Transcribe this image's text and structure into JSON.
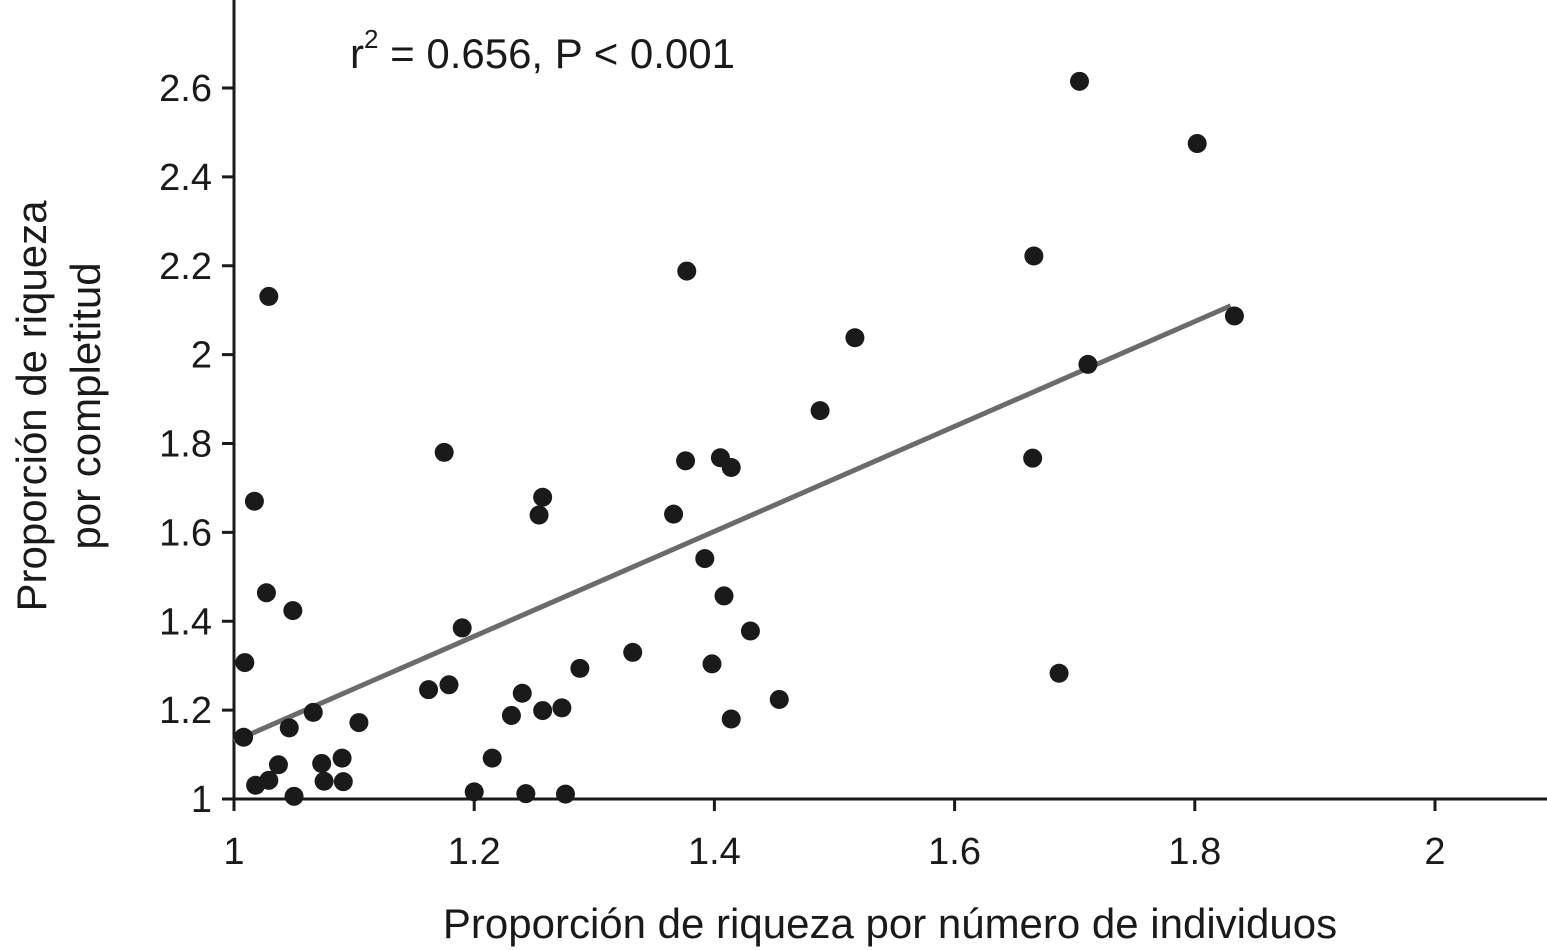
{
  "chart_data": {
    "type": "scatter",
    "title": "",
    "xlabel": "Proporción de riqueza por número de individuos",
    "ylabel_lines": [
      "Proporción de riqueza",
      "por completitud"
    ],
    "xlim": [
      1,
      2.0
    ],
    "ylim": [
      1,
      2.6
    ],
    "x_ticks": [
      {
        "value": 1,
        "label": "1"
      },
      {
        "value": 1.2,
        "label": "1.2"
      },
      {
        "value": 1.4,
        "label": "1.4"
      },
      {
        "value": 1.6,
        "label": "1.6"
      },
      {
        "value": 1.8,
        "label": "1.8"
      },
      {
        "value": 2.0,
        "label": "2"
      }
    ],
    "y_ticks": [
      {
        "value": 1,
        "label": "1"
      },
      {
        "value": 1.2,
        "label": "1.2"
      },
      {
        "value": 1.4,
        "label": "1.4"
      },
      {
        "value": 1.6,
        "label": "1.6"
      },
      {
        "value": 1.8,
        "label": "1.8"
      },
      {
        "value": 2.0,
        "label": "2"
      },
      {
        "value": 2.2,
        "label": "2.2"
      },
      {
        "value": 2.4,
        "label": "2.4"
      },
      {
        "value": 2.6,
        "label": "2.6"
      }
    ],
    "annotation": {
      "r_symbol": "r",
      "superscript": "2",
      "text": " = 0.656, P < 0.001"
    },
    "grid": false,
    "point_color": "#1a1a1a",
    "trend_color": "#6b6b6b",
    "trendline": {
      "x": [
        1.0,
        1.83
      ],
      "y": [
        1.13,
        2.11
      ]
    },
    "points": [
      {
        "x": 1.704,
        "y": 2.615
      },
      {
        "x": 1.802,
        "y": 2.475
      },
      {
        "x": 1.666,
        "y": 2.222
      },
      {
        "x": 1.377,
        "y": 2.188
      },
      {
        "x": 1.029,
        "y": 2.131
      },
      {
        "x": 1.833,
        "y": 2.087
      },
      {
        "x": 1.517,
        "y": 2.038
      },
      {
        "x": 1.711,
        "y": 1.978
      },
      {
        "x": 1.488,
        "y": 1.874
      },
      {
        "x": 1.175,
        "y": 1.78
      },
      {
        "x": 1.376,
        "y": 1.761
      },
      {
        "x": 1.405,
        "y": 1.768
      },
      {
        "x": 1.414,
        "y": 1.746
      },
      {
        "x": 1.665,
        "y": 1.767
      },
      {
        "x": 1.017,
        "y": 1.67
      },
      {
        "x": 1.257,
        "y": 1.679
      },
      {
        "x": 1.254,
        "y": 1.639
      },
      {
        "x": 1.366,
        "y": 1.641
      },
      {
        "x": 1.392,
        "y": 1.541
      },
      {
        "x": 1.027,
        "y": 1.464
      },
      {
        "x": 1.049,
        "y": 1.424
      },
      {
        "x": 1.408,
        "y": 1.457
      },
      {
        "x": 1.19,
        "y": 1.385
      },
      {
        "x": 1.43,
        "y": 1.378
      },
      {
        "x": 1.332,
        "y": 1.33
      },
      {
        "x": 1.009,
        "y": 1.307
      },
      {
        "x": 1.398,
        "y": 1.304
      },
      {
        "x": 1.288,
        "y": 1.294
      },
      {
        "x": 1.687,
        "y": 1.283
      },
      {
        "x": 1.162,
        "y": 1.246
      },
      {
        "x": 1.179,
        "y": 1.257
      },
      {
        "x": 1.24,
        "y": 1.238
      },
      {
        "x": 1.454,
        "y": 1.224
      },
      {
        "x": 1.066,
        "y": 1.195
      },
      {
        "x": 1.257,
        "y": 1.199
      },
      {
        "x": 1.273,
        "y": 1.205
      },
      {
        "x": 1.231,
        "y": 1.188
      },
      {
        "x": 1.414,
        "y": 1.18
      },
      {
        "x": 1.104,
        "y": 1.172
      },
      {
        "x": 1.046,
        "y": 1.16
      },
      {
        "x": 1.008,
        "y": 1.139
      },
      {
        "x": 1.215,
        "y": 1.092
      },
      {
        "x": 1.09,
        "y": 1.092
      },
      {
        "x": 1.073,
        "y": 1.08
      },
      {
        "x": 1.037,
        "y": 1.077
      },
      {
        "x": 1.029,
        "y": 1.042
      },
      {
        "x": 1.075,
        "y": 1.04
      },
      {
        "x": 1.091,
        "y": 1.039
      },
      {
        "x": 1.018,
        "y": 1.031
      },
      {
        "x": 1.2,
        "y": 1.016
      },
      {
        "x": 1.243,
        "y": 1.012
      },
      {
        "x": 1.276,
        "y": 1.011
      },
      {
        "x": 1.05,
        "y": 1.006
      }
    ]
  }
}
